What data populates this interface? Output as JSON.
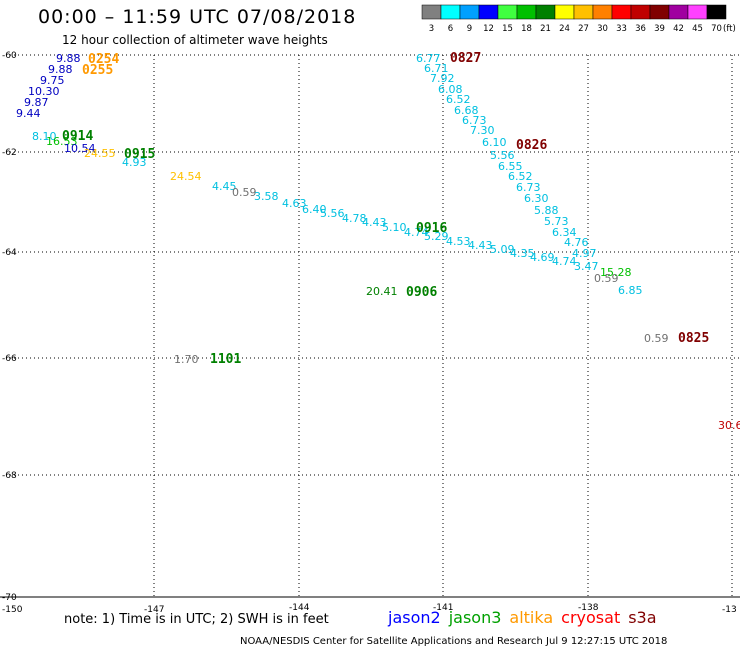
{
  "header": {
    "title": "00:00 – 11:59 UTC 07/08/2018",
    "subtitle": "12 hour collection of altimeter wave heights"
  },
  "scale": {
    "unit_label": "(ft)",
    "bins": [
      {
        "label": "3",
        "color": "#808080"
      },
      {
        "label": "6",
        "color": "#00ffff"
      },
      {
        "label": "9",
        "color": "#00a0ff"
      },
      {
        "label": "12",
        "color": "#0000ff"
      },
      {
        "label": "15",
        "color": "#40ff40"
      },
      {
        "label": "18",
        "color": "#00c000"
      },
      {
        "label": "21",
        "color": "#008000"
      },
      {
        "label": "24",
        "color": "#ffff00"
      },
      {
        "label": "27",
        "color": "#ffc000"
      },
      {
        "label": "30",
        "color": "#ff8000"
      },
      {
        "label": "33",
        "color": "#ff0000"
      },
      {
        "label": "36",
        "color": "#c00000"
      },
      {
        "label": "39",
        "color": "#800000"
      },
      {
        "label": "42",
        "color": "#a000a0"
      },
      {
        "label": "45",
        "color": "#ff40ff"
      },
      {
        "label": "70",
        "color": "#000000"
      }
    ]
  },
  "axes": {
    "lon_ticks": [
      "-150",
      "-147",
      "-144",
      "-141",
      "-138",
      "-13"
    ],
    "lat_ticks": [
      "-60",
      "-62",
      "-64",
      "-66",
      "-68",
      "-70"
    ]
  },
  "observations": [
    {
      "text": "9.88",
      "color": "#0000c0"
    },
    {
      "text": "9.88",
      "color": "#0000c0"
    },
    {
      "text": "9.75",
      "color": "#0000c0"
    },
    {
      "text": "10.30",
      "color": "#0000c0"
    },
    {
      "text": "9.87",
      "color": "#0000c0"
    },
    {
      "text": "9.44",
      "color": "#0000c0"
    },
    {
      "text": "8.10",
      "color": "#00c0e0"
    },
    {
      "text": "16.53",
      "color": "#00c000"
    },
    {
      "text": "10.54",
      "color": "#0000c0"
    },
    {
      "text": "24.55",
      "color": "#ffc000"
    },
    {
      "text": "4.93",
      "color": "#00c0e0"
    },
    {
      "text": "24.54",
      "color": "#ffc000"
    },
    {
      "text": "4.45",
      "color": "#00c0e0"
    },
    {
      "text": "0.59",
      "color": "#707070"
    },
    {
      "text": "3.58",
      "color": "#00c0e0"
    },
    {
      "text": "4.63",
      "color": "#00c0e0"
    },
    {
      "text": "6.40",
      "color": "#00c0e0"
    },
    {
      "text": "5.56",
      "color": "#00c0e0"
    },
    {
      "text": "4.78",
      "color": "#00c0e0"
    },
    {
      "text": "4.43",
      "color": "#00c0e0"
    },
    {
      "text": "5.10",
      "color": "#00c0e0"
    },
    {
      "text": "4.74",
      "color": "#00c0e0"
    },
    {
      "text": "5.29",
      "color": "#00c0e0"
    },
    {
      "text": "4.53",
      "color": "#00c0e0"
    },
    {
      "text": "4.43",
      "color": "#00c0e0"
    },
    {
      "text": "5.09",
      "color": "#00c0e0"
    },
    {
      "text": "4.35",
      "color": "#00c0e0"
    },
    {
      "text": "4.69",
      "color": "#00c0e0"
    },
    {
      "text": "4.74",
      "color": "#00c0e0"
    },
    {
      "text": "3.47",
      "color": "#00c0e0"
    },
    {
      "text": "0.59",
      "color": "#707070"
    },
    {
      "text": "15.28",
      "color": "#00c000"
    },
    {
      "text": "6.85",
      "color": "#00c0e0"
    },
    {
      "text": "6.77",
      "color": "#00c0e0"
    },
    {
      "text": "6.71",
      "color": "#00c0e0"
    },
    {
      "text": "7.92",
      "color": "#00c0e0"
    },
    {
      "text": "6.08",
      "color": "#00c0e0"
    },
    {
      "text": "6.52",
      "color": "#00c0e0"
    },
    {
      "text": "6.68",
      "color": "#00c0e0"
    },
    {
      "text": "6.73",
      "color": "#00c0e0"
    },
    {
      "text": "7.30",
      "color": "#00c0e0"
    },
    {
      "text": "6.10",
      "color": "#00c0e0"
    },
    {
      "text": "5.56",
      "color": "#00c0e0"
    },
    {
      "text": "6.55",
      "color": "#00c0e0"
    },
    {
      "text": "6.52",
      "color": "#00c0e0"
    },
    {
      "text": "6.73",
      "color": "#00c0e0"
    },
    {
      "text": "6.30",
      "color": "#00c0e0"
    },
    {
      "text": "5.88",
      "color": "#00c0e0"
    },
    {
      "text": "5.73",
      "color": "#00c0e0"
    },
    {
      "text": "6.34",
      "color": "#00c0e0"
    },
    {
      "text": "4.76",
      "color": "#00c0e0"
    },
    {
      "text": "4.97",
      "color": "#00c0e0"
    },
    {
      "text": "20.41",
      "color": "#008000"
    },
    {
      "text": "0.59",
      "color": "#707070"
    },
    {
      "text": "1.70",
      "color": "#707070"
    },
    {
      "text": "30.6",
      "color": "#c00000"
    }
  ],
  "pass_times": [
    {
      "text": "0254",
      "color": "#ff9900"
    },
    {
      "text": "0255",
      "color": "#ff9900"
    },
    {
      "text": "0914",
      "color": "#008000"
    },
    {
      "text": "0915",
      "color": "#008000"
    },
    {
      "text": "0916",
      "color": "#008000"
    },
    {
      "text": "0906",
      "color": "#008000"
    },
    {
      "text": "1101",
      "color": "#008000"
    },
    {
      "text": "0827",
      "color": "#800000"
    },
    {
      "text": "0826",
      "color": "#800000"
    },
    {
      "text": "0825",
      "color": "#800000"
    }
  ],
  "note": "note: 1) Time is in UTC; 2) SWH is in feet",
  "satellites": [
    {
      "name": "jason2",
      "color": "#0000ff"
    },
    {
      "name": "jason3",
      "color": "#00a000"
    },
    {
      "name": "altika",
      "color": "#ff9900"
    },
    {
      "name": "cryosat",
      "color": "#ff0000"
    },
    {
      "name": "s3a",
      "color": "#800000"
    }
  ],
  "footer": "NOAA/NESDIS Center for Satellite Applications and Research   Jul  9 12:27:15 UTC 2018"
}
